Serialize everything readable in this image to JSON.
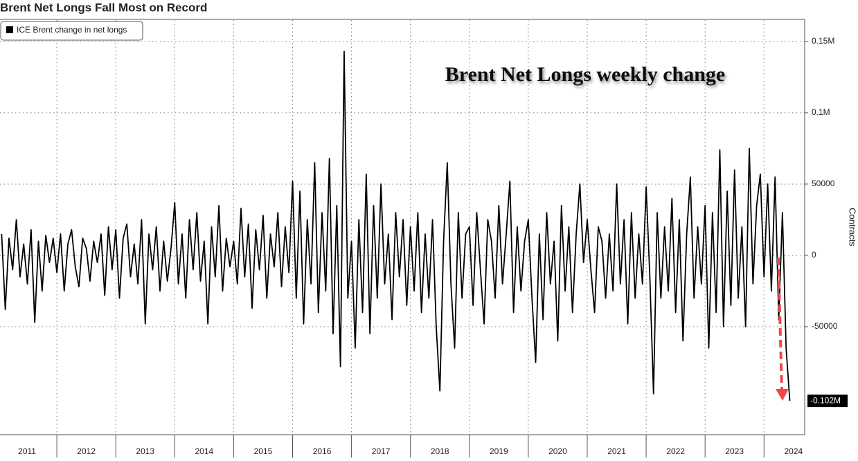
{
  "chart_data": {
    "type": "line",
    "title": "Brent Net Longs Fall Most on Record",
    "annotation": "Brent Net Longs weekly change",
    "y_axis_label": "Contracts",
    "legend_position": "top-left",
    "last_value_label": "-0.102M",
    "ylim": [
      -125000,
      165000
    ],
    "yticks": [
      -50000,
      0,
      50000,
      {
        "value": 100000,
        "label": "0.1M"
      },
      {
        "value": 150000,
        "label": "0.15M"
      }
    ],
    "xlim": [
      2011,
      2024.69
    ],
    "xticks": [
      2012,
      2013,
      2014,
      2015,
      2016,
      2017,
      2018,
      2019,
      2020,
      2021,
      2022,
      2023,
      2024
    ],
    "x_labels": [
      "2011",
      "2012",
      "2013",
      "2014",
      "2015",
      "2016",
      "2017",
      "2018",
      "2019",
      "2020",
      "2021",
      "2022",
      "2023",
      "2024"
    ],
    "grid": true,
    "x": [
      2011.0625,
      2011.125,
      2011.1875,
      2011.25,
      2011.3125,
      2011.375,
      2011.4375,
      2011.5,
      2011.5625,
      2011.625,
      2011.6875,
      2011.75,
      2011.8125,
      2011.875,
      2011.9375,
      2012,
      2012.0625,
      2012.125,
      2012.1875,
      2012.25,
      2012.3125,
      2012.375,
      2012.4375,
      2012.5,
      2012.5625,
      2012.625,
      2012.6875,
      2012.75,
      2012.8125,
      2012.875,
      2012.9375,
      2013,
      2013.0625,
      2013.125,
      2013.1875,
      2013.25,
      2013.3125,
      2013.375,
      2013.4375,
      2013.5,
      2013.5625,
      2013.625,
      2013.6875,
      2013.75,
      2013.8125,
      2013.875,
      2013.9375,
      2014,
      2014.0625,
      2014.125,
      2014.1875,
      2014.25,
      2014.3125,
      2014.375,
      2014.4375,
      2014.5,
      2014.5625,
      2014.625,
      2014.6875,
      2014.75,
      2014.8125,
      2014.875,
      2014.9375,
      2015,
      2015.0625,
      2015.125,
      2015.1875,
      2015.25,
      2015.3125,
      2015.375,
      2015.4375,
      2015.5,
      2015.5625,
      2015.625,
      2015.6875,
      2015.75,
      2015.8125,
      2015.875,
      2015.9375,
      2016,
      2016.0625,
      2016.125,
      2016.1875,
      2016.25,
      2016.3125,
      2016.375,
      2016.4375,
      2016.5,
      2016.5625,
      2016.625,
      2016.6875,
      2016.75,
      2016.8125,
      2016.875,
      2016.9375,
      2017,
      2017.0625,
      2017.125,
      2017.1875,
      2017.25,
      2017.3125,
      2017.375,
      2017.4375,
      2017.5,
      2017.5625,
      2017.625,
      2017.6875,
      2017.75,
      2017.8125,
      2017.875,
      2017.9375,
      2018,
      2018.0625,
      2018.125,
      2018.1875,
      2018.25,
      2018.3125,
      2018.375,
      2018.4375,
      2018.5,
      2018.5625,
      2018.625,
      2018.6875,
      2018.75,
      2018.8125,
      2018.875,
      2018.9375,
      2019,
      2019.0625,
      2019.125,
      2019.1875,
      2019.25,
      2019.3125,
      2019.375,
      2019.4375,
      2019.5,
      2019.5625,
      2019.625,
      2019.6875,
      2019.75,
      2019.8125,
      2019.875,
      2019.9375,
      2020,
      2020.0625,
      2020.125,
      2020.1875,
      2020.25,
      2020.3125,
      2020.375,
      2020.4375,
      2020.5,
      2020.5625,
      2020.625,
      2020.6875,
      2020.75,
      2020.8125,
      2020.875,
      2020.9375,
      2021,
      2021.0625,
      2021.125,
      2021.1875,
      2021.25,
      2021.3125,
      2021.375,
      2021.4375,
      2021.5,
      2021.5625,
      2021.625,
      2021.6875,
      2021.75,
      2021.8125,
      2021.875,
      2021.9375,
      2022,
      2022.0625,
      2022.125,
      2022.1875,
      2022.25,
      2022.3125,
      2022.375,
      2022.4375,
      2022.5,
      2022.5625,
      2022.625,
      2022.6875,
      2022.75,
      2022.8125,
      2022.875,
      2022.9375,
      2023,
      2023.0625,
      2023.125,
      2023.1875,
      2023.25,
      2023.3125,
      2023.375,
      2023.4375,
      2023.5,
      2023.5625,
      2023.625,
      2023.6875,
      2023.75,
      2023.8125,
      2023.875,
      2023.9375,
      2024,
      2024.0625,
      2024.125,
      2024.1875,
      2024.25,
      2024.3125,
      2024.375,
      2024.4375
    ],
    "series": [
      {
        "name": "ICE Brent change in net longs",
        "color": "#000000",
        "values": [
          15000,
          -38000,
          12000,
          -10000,
          25000,
          -15000,
          8000,
          -20000,
          18000,
          -47000,
          10000,
          -25000,
          14000,
          -5000,
          12000,
          -12000,
          15000,
          -25000,
          8000,
          18000,
          -8000,
          -22000,
          12000,
          5000,
          -18000,
          10000,
          -5000,
          15000,
          -28000,
          20000,
          -10000,
          18000,
          -30000,
          12000,
          22000,
          -15000,
          8000,
          -20000,
          25000,
          -48000,
          15000,
          -10000,
          20000,
          -25000,
          10000,
          -18000,
          5000,
          37000,
          -20000,
          15000,
          -30000,
          25000,
          -10000,
          30000,
          -18000,
          10000,
          -48000,
          20000,
          -15000,
          35000,
          -25000,
          12000,
          -8000,
          10000,
          -20000,
          33000,
          -15000,
          22000,
          -37000,
          18000,
          -10000,
          28000,
          -30000,
          15000,
          -8000,
          30000,
          -22000,
          20000,
          -12000,
          52000,
          -30000,
          45000,
          -48000,
          25000,
          -20000,
          65000,
          -40000,
          30000,
          -25000,
          68000,
          -55000,
          35000,
          -78000,
          143000,
          -30000,
          10000,
          -65000,
          25000,
          -40000,
          57000,
          -55000,
          35000,
          -30000,
          50000,
          -20000,
          15000,
          -45000,
          30000,
          -15000,
          25000,
          -35000,
          20000,
          -25000,
          30000,
          -40000,
          15000,
          -30000,
          25000,
          -50000,
          -95000,
          10000,
          65000,
          -20000,
          -65000,
          30000,
          -30000,
          15000,
          20000,
          -35000,
          30000,
          -10000,
          -48000,
          25000,
          10000,
          -30000,
          35000,
          -20000,
          15000,
          52000,
          -40000,
          20000,
          -25000,
          10000,
          25000,
          -30000,
          -75000,
          15000,
          -45000,
          30000,
          -20000,
          10000,
          -60000,
          35000,
          -25000,
          20000,
          -40000,
          15000,
          50000,
          -5000,
          25000,
          -10000,
          -40000,
          20000,
          10000,
          -30000,
          15000,
          -25000,
          50000,
          -20000,
          25000,
          -48000,
          30000,
          -30000,
          15000,
          -20000,
          48000,
          -15000,
          -97000,
          30000,
          -30000,
          20000,
          -25000,
          40000,
          -40000,
          25000,
          -60000,
          15000,
          55000,
          -30000,
          20000,
          -20000,
          35000,
          -65000,
          30000,
          -40000,
          74000,
          -50000,
          45000,
          -35000,
          60000,
          -30000,
          20000,
          -50000,
          75000,
          -20000,
          35000,
          57000,
          -15000,
          50000,
          -25000,
          55000,
          -45000,
          30000,
          -65000,
          -102000
        ]
      }
    ]
  }
}
